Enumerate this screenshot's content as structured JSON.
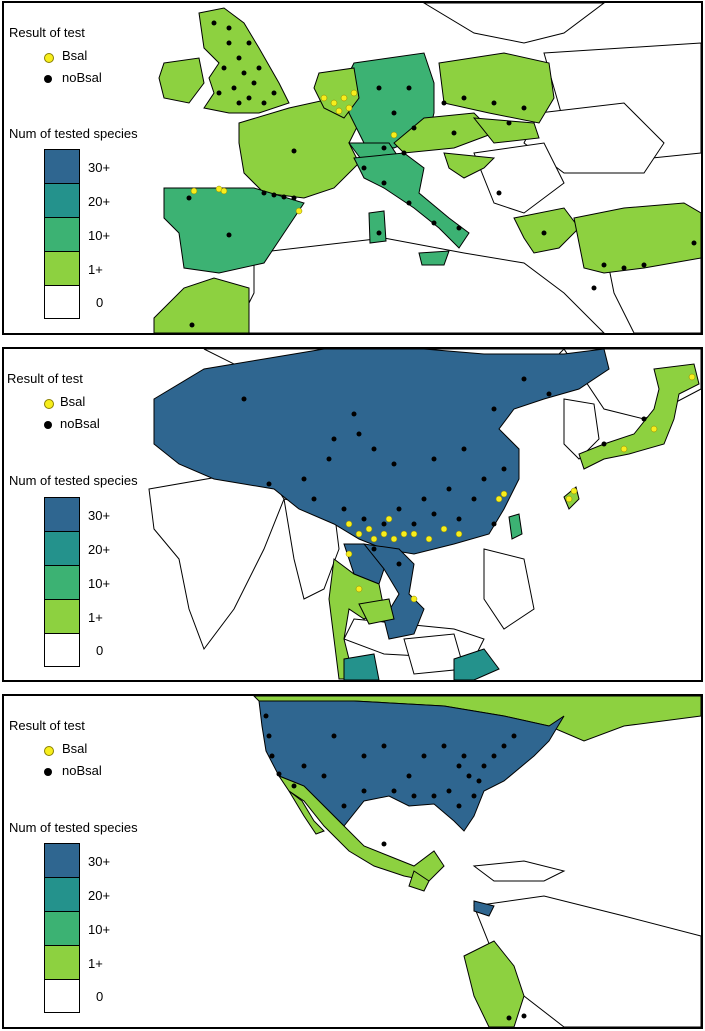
{
  "colors": {
    "bin_0": "#ffffff",
    "bin_1plus": "#8dd140",
    "bin_10plus": "#3cb273",
    "bin_20plus": "#24928c",
    "bin_30plus": "#2f6690",
    "bsal_point": "#f7ee1c",
    "nobsal_point": "#000000",
    "border": "#000000"
  },
  "legend": {
    "result_title": "Result of test",
    "bsal_label": "Bsal",
    "nobsal_label": "noBsal",
    "species_title": "Num of tested species",
    "scale": [
      "30+",
      "20+",
      "10+",
      "1+",
      "0"
    ]
  },
  "panels": [
    {
      "id": "europe",
      "region": "Europe"
    },
    {
      "id": "asia",
      "region": "East and Southeast Asia"
    },
    {
      "id": "america",
      "region": "North and Central America"
    }
  ]
}
